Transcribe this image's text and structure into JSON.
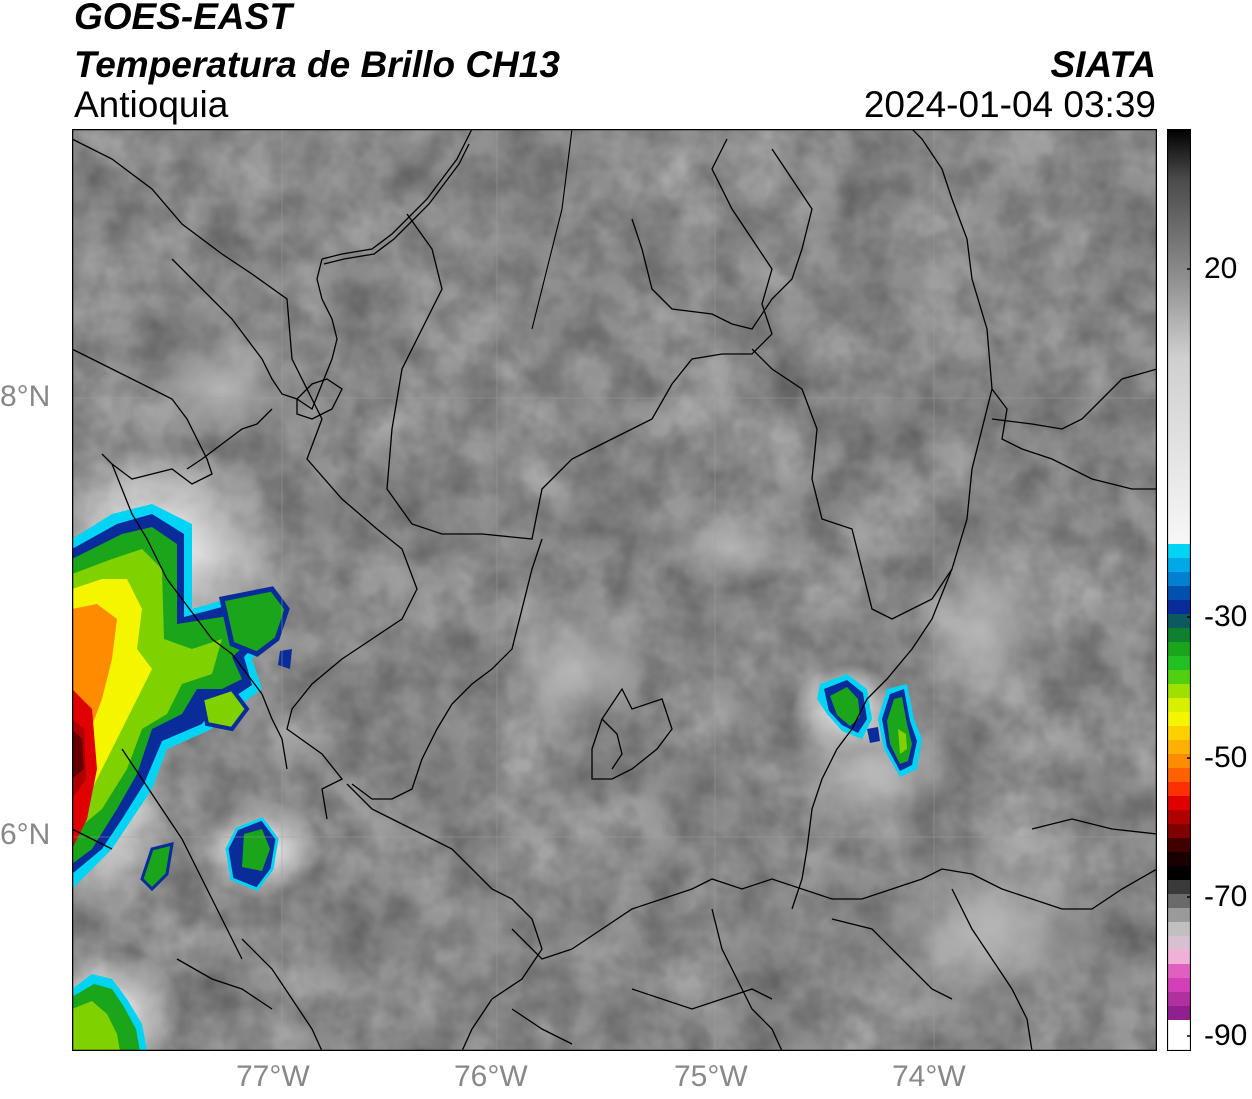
{
  "header": {
    "satellite": "GOES-EAST",
    "product": "Temperatura de Brillo CH13",
    "region": "Antioquia",
    "agency": "SIATA",
    "datetime": "2024-01-04 03:39"
  },
  "map": {
    "lat_labels": [
      "8°N",
      "6°N"
    ],
    "lon_labels": [
      "77°W",
      "76°W",
      "75°W",
      "74°W"
    ]
  },
  "colorbar": {
    "ticks": [
      "20",
      "-30",
      "-50",
      "-70",
      "-90"
    ],
    "colors": {
      "black": "#000000",
      "dark_gray": "#4a4a4a",
      "mid_gray": "#8c8c8c",
      "light_gray": "#e8e8e8",
      "cyan": "#00d4f5",
      "blue": "#0a2c9a",
      "green": "#1aa51a",
      "yellow": "#f5f500",
      "orange": "#ff8c00",
      "red": "#e00000",
      "magenta": "#d33fb8"
    }
  }
}
